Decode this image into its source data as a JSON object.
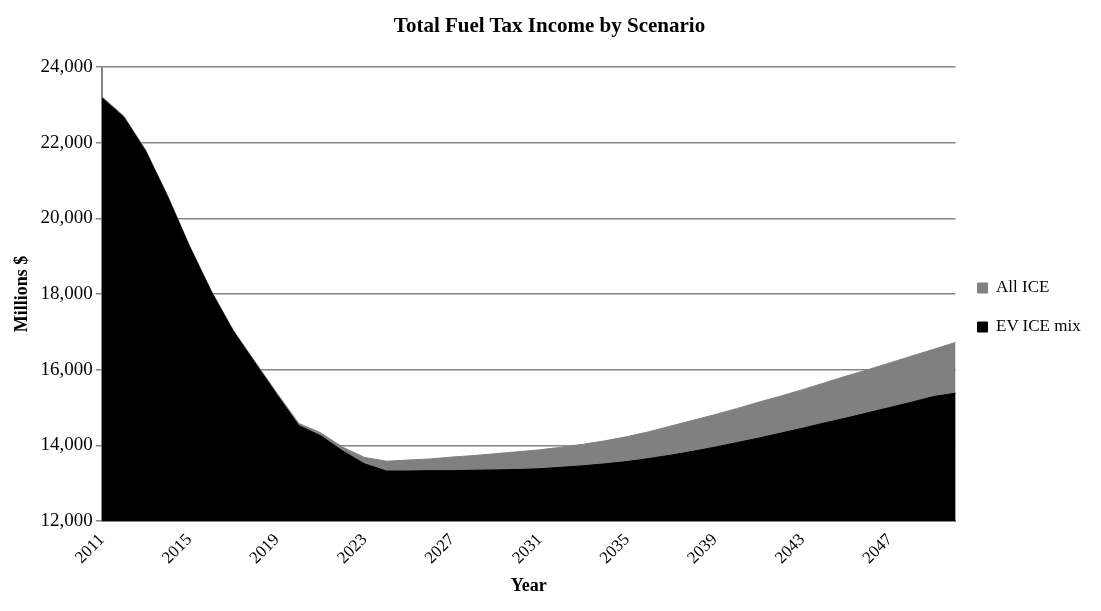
{
  "chart_data": {
    "type": "area",
    "title": "Total Fuel Tax Income by Scenario",
    "xlabel": "Year",
    "ylabel": "Millions $",
    "categories": [
      "2011",
      null,
      null,
      null,
      "2015",
      null,
      null,
      null,
      "2019",
      null,
      null,
      null,
      "2023",
      null,
      null,
      null,
      "2027",
      null,
      null,
      null,
      "2031",
      null,
      null,
      null,
      "2035",
      null,
      null,
      null,
      "2039",
      null,
      null,
      null,
      "2043",
      null,
      null,
      null,
      "2047",
      null,
      null,
      null
    ],
    "series": [
      {
        "name": "All ICE",
        "color": "#808080",
        "values": [
          23220,
          22710,
          21810,
          20610,
          19290,
          18090,
          17050,
          16210,
          15380,
          14580,
          14330,
          13950,
          13680,
          13580,
          13610,
          13640,
          13690,
          13730,
          13780,
          13830,
          13880,
          13950,
          14030,
          14120,
          14230,
          14360,
          14510,
          14660,
          14810,
          14970,
          15140,
          15300,
          15470,
          15650,
          15830,
          16000,
          16180,
          16360,
          16540,
          16720
        ]
      },
      {
        "name": "EV ICE mix",
        "color": "#000000",
        "values": [
          23190,
          22680,
          21780,
          20580,
          19260,
          18060,
          17020,
          16180,
          15340,
          14520,
          14250,
          13850,
          13510,
          13320,
          13320,
          13330,
          13330,
          13340,
          13350,
          13360,
          13380,
          13420,
          13460,
          13510,
          13570,
          13650,
          13740,
          13840,
          13950,
          14070,
          14190,
          14320,
          14450,
          14590,
          14720,
          14860,
          15000,
          15140,
          15290,
          15380
        ]
      }
    ],
    "ylim": [
      12000,
      24000
    ],
    "yticks": [
      {
        "value": 12000,
        "label": "12,000"
      },
      {
        "value": 14000,
        "label": "14,000"
      },
      {
        "value": 16000,
        "label": "16,000"
      },
      {
        "value": 18000,
        "label": "18,000"
      },
      {
        "value": 20000,
        "label": "20,000"
      },
      {
        "value": 22000,
        "label": "22,000"
      },
      {
        "value": 24000,
        "label": "24,000"
      }
    ],
    "grid": "y",
    "legend": "right"
  }
}
